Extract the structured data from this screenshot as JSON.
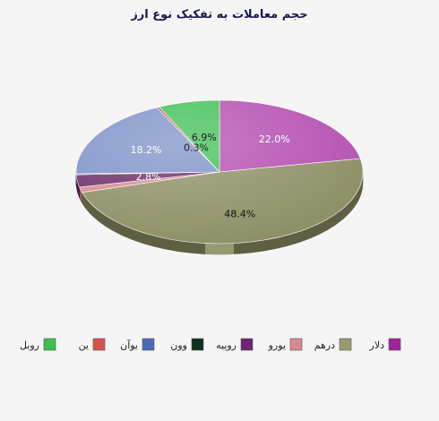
{
  "chart_data": {
    "type": "pie",
    "title": "حجم معاملات به تفکیک نوع ارز",
    "style": "3d",
    "legend_position": "bottom",
    "slices": [
      {
        "label": "دلار",
        "value": 22.0,
        "value_label": "22.0%",
        "color": "#b44db0",
        "label_color": "#ffffff"
      },
      {
        "label": "درهم",
        "value": 48.4,
        "value_label": "48.4%",
        "color": "#8c8d63",
        "label_color": "#111111"
      },
      {
        "label": "یورو",
        "value": 1.2,
        "value_label": "",
        "color": "#d68a8f",
        "label_color": "#ffffff"
      },
      {
        "label": "روپیه",
        "value": 2.8,
        "value_label": "2.8%",
        "color": "#6c2a68",
        "label_color": "#ffffff"
      },
      {
        "label": "وون",
        "value": 0.2,
        "value_label": "",
        "color": "#1d3a2c",
        "label_color": "#ffffff"
      },
      {
        "label": "یوآن",
        "value": 18.2,
        "value_label": "18.2%",
        "color": "#7b8fc7",
        "label_color": "#ffffff"
      },
      {
        "label": "ین",
        "value": 0.3,
        "value_label": "0.3%",
        "color": "#c9504a",
        "label_color": "#222222"
      },
      {
        "label": "روبل",
        "value": 6.9,
        "value_label": "6.9%",
        "color": "#3fbf55",
        "label_color": "#222222"
      }
    ],
    "legend_swatch_colors": [
      "#a0239a",
      "#9a9a6e",
      "#d98a90",
      "#6e2470",
      "#12301e",
      "#4a6ab8",
      "#d6524b",
      "#3cc04e"
    ]
  }
}
